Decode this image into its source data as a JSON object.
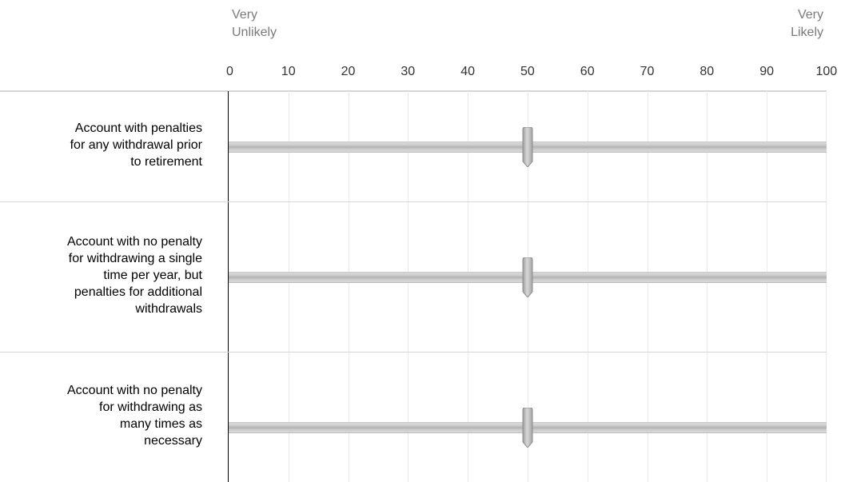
{
  "scale": {
    "anchor_left": [
      "Very",
      "Unlikely"
    ],
    "anchor_right": [
      "Very",
      "Likely"
    ],
    "min": 0,
    "max": 100,
    "ticks": [
      "0",
      "10",
      "20",
      "30",
      "40",
      "50",
      "60",
      "70",
      "80",
      "90",
      "100"
    ]
  },
  "statements": [
    {
      "label": "Account with penalties for any withdrawal prior to retirement",
      "lines": [
        "Account with penalties",
        "for any withdrawal prior",
        "to retirement"
      ],
      "value": 50
    },
    {
      "label": "Account with no penalty for withdrawing a single time per year, but penalties for additional withdrawals",
      "lines": [
        "Account with no penalty",
        "for withdrawing a single",
        "time per year, but",
        "penalties for additional",
        "withdrawals"
      ],
      "value": 50
    },
    {
      "label": "Account with no penalty for withdrawing as many times as necessary",
      "lines": [
        "Account with no penalty",
        "for withdrawing as",
        "many times as",
        "necessary"
      ],
      "value": 50
    }
  ],
  "colors": {
    "track": "#c8c8c8",
    "handle": "#b5b5b5",
    "axis": "#000000",
    "grid": "#ebebeb",
    "divider": "#d6d6d6",
    "anchor_text": "#7a7a7a"
  },
  "icons": {
    "handle": "slider-handle-icon"
  }
}
